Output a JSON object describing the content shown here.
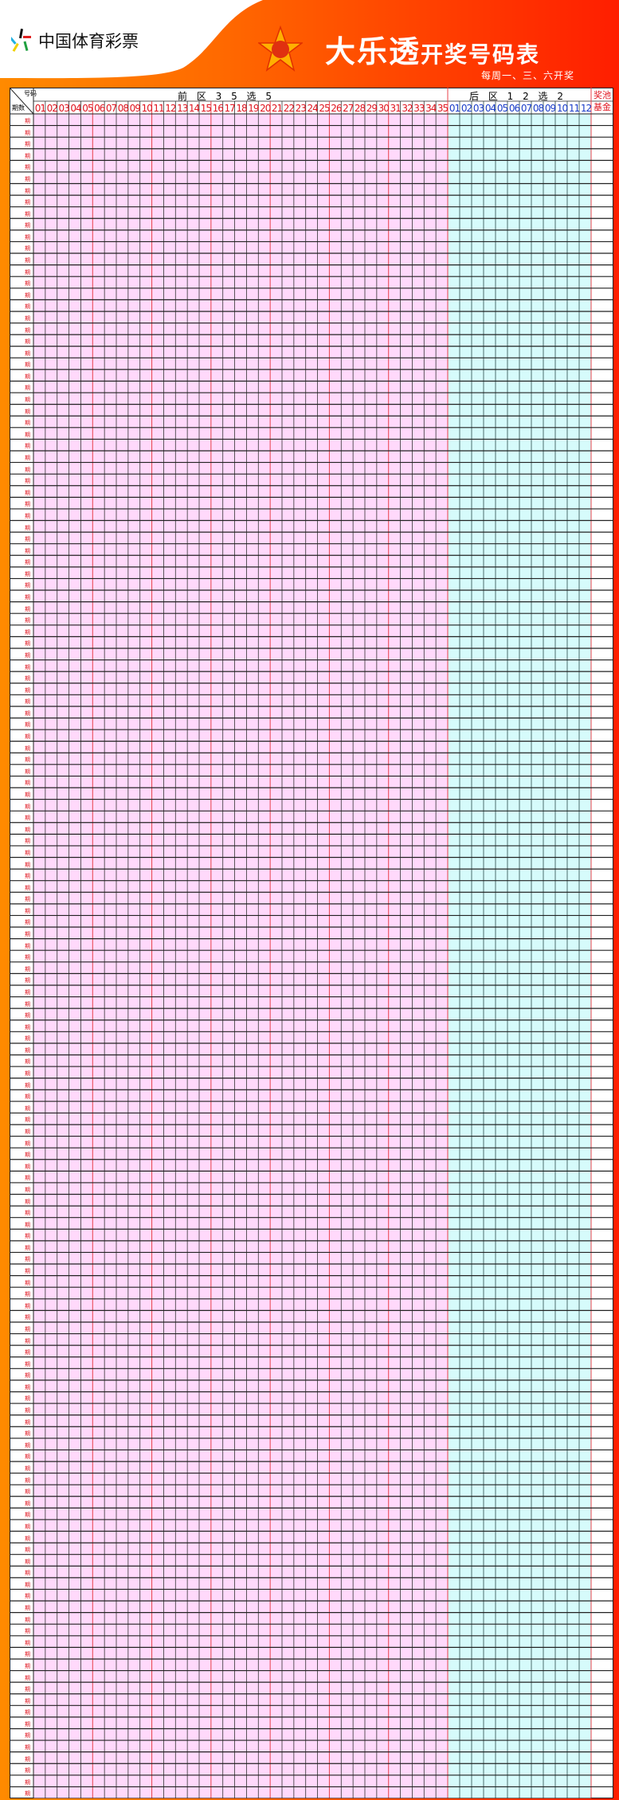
{
  "header": {
    "brand": "中国体育彩票",
    "title_main": "大乐透",
    "title_sub": "开奖号码表",
    "schedule": "每周一、三、六开奖",
    "logo_badge": "大乐透"
  },
  "table": {
    "corner_top": "号码",
    "corner_bottom": "期数",
    "front_title": "前 区 3 5 选 5",
    "back_title": "后 区 1 2 选 2",
    "prize_label": "奖池基金",
    "front_numbers": [
      "01",
      "02",
      "03",
      "04",
      "05",
      "06",
      "07",
      "08",
      "09",
      "10",
      "11",
      "12",
      "13",
      "14",
      "15",
      "16",
      "17",
      "18",
      "19",
      "20",
      "21",
      "22",
      "23",
      "24",
      "25",
      "26",
      "27",
      "28",
      "29",
      "30",
      "31",
      "32",
      "33",
      "34",
      "35"
    ],
    "back_numbers": [
      "01",
      "02",
      "03",
      "04",
      "05",
      "06",
      "07",
      "08",
      "09",
      "10",
      "11",
      "12"
    ],
    "row_label": "期",
    "row_count": 145
  },
  "colors": {
    "front_fill": "#ffd9fb",
    "back_fill": "#d6fbfb",
    "front_numbers": "#e0141e",
    "back_numbers": "#1a3cc8",
    "accent_red": "#e8404a"
  }
}
